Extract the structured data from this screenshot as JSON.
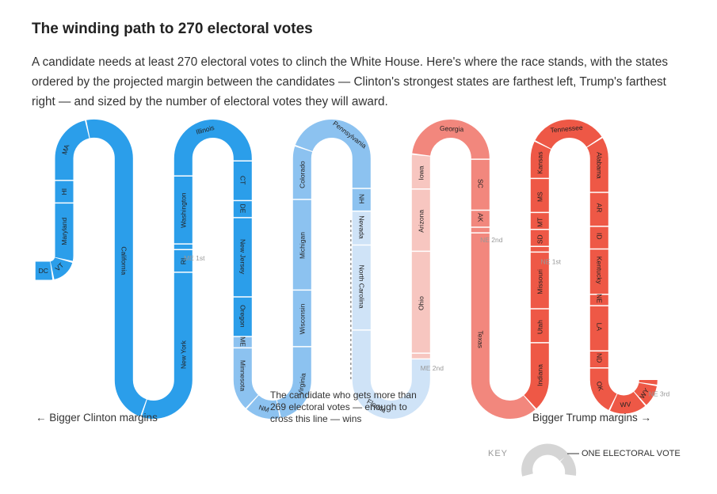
{
  "header": {
    "title": "The winding path to 270 electoral votes",
    "description": "A candidate needs at least 270 electoral votes to clinch the White House. Here's where the race stands, with the states ordered by the projected margin between the candidates — Clinton's strongest states are farthest left, Trump's farthest right — and sized by the number of electoral votes they will award."
  },
  "colors": {
    "clinton_strong": "#2b9eea",
    "clinton_lean": "#8cc2f0",
    "clinton_tossup": "#cfe3f7",
    "trump_tossup": "#f7c6c0",
    "trump_lean": "#f2877d",
    "trump_strong": "#ee5846",
    "key_gray": "#d5d5d5"
  },
  "states": [
    {
      "name": "DC",
      "votes": 3,
      "color": "clinton_strong"
    },
    {
      "name": "VT",
      "votes": 3,
      "color": "clinton_strong"
    },
    {
      "name": "Maryland",
      "votes": 10,
      "color": "clinton_strong"
    },
    {
      "name": "HI",
      "votes": 4,
      "color": "clinton_strong"
    },
    {
      "name": "MA",
      "votes": 11,
      "color": "clinton_strong"
    },
    {
      "name": "California",
      "votes": 55,
      "color": "clinton_strong"
    },
    {
      "name": "New York",
      "votes": 29,
      "color": "clinton_strong"
    },
    {
      "name": "RI",
      "votes": 4,
      "color": "clinton_strong"
    },
    {
      "name": "ME 1st",
      "votes": 1,
      "color": "clinton_strong"
    },
    {
      "name": "Washington",
      "votes": 12,
      "color": "clinton_strong"
    },
    {
      "name": "Illinois",
      "votes": 20,
      "color": "clinton_strong"
    },
    {
      "name": "CT",
      "votes": 7,
      "color": "clinton_strong"
    },
    {
      "name": "DE",
      "votes": 3,
      "color": "clinton_strong"
    },
    {
      "name": "New Jersey",
      "votes": 14,
      "color": "clinton_strong"
    },
    {
      "name": "Oregon",
      "votes": 7,
      "color": "clinton_strong"
    },
    {
      "name": "ME",
      "votes": 2,
      "color": "clinton_lean"
    },
    {
      "name": "Minnesota",
      "votes": 10,
      "color": "clinton_lean"
    },
    {
      "name": "NM",
      "votes": 5,
      "color": "clinton_lean"
    },
    {
      "name": "Virginia",
      "votes": 13,
      "color": "clinton_lean"
    },
    {
      "name": "Wisconsin",
      "votes": 10,
      "color": "clinton_lean"
    },
    {
      "name": "Michigan",
      "votes": 16,
      "color": "clinton_lean"
    },
    {
      "name": "Colorado",
      "votes": 9,
      "color": "clinton_lean"
    },
    {
      "name": "Pennsylvania",
      "votes": 20,
      "color": "clinton_lean"
    },
    {
      "name": "NH",
      "votes": 4,
      "color": "clinton_lean"
    },
    {
      "name": "Nevada",
      "votes": 6,
      "color": "clinton_tossup"
    },
    {
      "name": "North Carolina",
      "votes": 15,
      "color": "clinton_tossup"
    },
    {
      "name": "Florida",
      "votes": 29,
      "color": "clinton_tossup"
    },
    {
      "name": "ME 2nd",
      "votes": 1,
      "color": "trump_tossup"
    },
    {
      "name": "Ohio",
      "votes": 18,
      "color": "trump_tossup"
    },
    {
      "name": "Arizona",
      "votes": 11,
      "color": "trump_tossup"
    },
    {
      "name": "Iowa",
      "votes": 6,
      "color": "trump_tossup"
    },
    {
      "name": "Georgia",
      "votes": 16,
      "color": "trump_lean"
    },
    {
      "name": "SC",
      "votes": 9,
      "color": "trump_lean"
    },
    {
      "name": "AK",
      "votes": 3,
      "color": "trump_lean"
    },
    {
      "name": "NE 2nd",
      "votes": 1,
      "color": "trump_lean"
    },
    {
      "name": "Texas",
      "votes": 38,
      "color": "trump_lean"
    },
    {
      "name": "Indiana",
      "votes": 11,
      "color": "trump_strong"
    },
    {
      "name": "Utah",
      "votes": 6,
      "color": "trump_strong"
    },
    {
      "name": "Missouri",
      "votes": 10,
      "color": "trump_strong"
    },
    {
      "name": "NE 1st",
      "votes": 1,
      "color": "trump_strong"
    },
    {
      "name": "SD",
      "votes": 3,
      "color": "trump_strong"
    },
    {
      "name": "MT",
      "votes": 3,
      "color": "trump_strong"
    },
    {
      "name": "MS",
      "votes": 6,
      "color": "trump_strong"
    },
    {
      "name": "Kansas",
      "votes": 6,
      "color": "trump_strong"
    },
    {
      "name": "Tennessee",
      "votes": 11,
      "color": "trump_strong"
    },
    {
      "name": "Alabama",
      "votes": 9,
      "color": "trump_strong"
    },
    {
      "name": "AR",
      "votes": 6,
      "color": "trump_strong"
    },
    {
      "name": "ID",
      "votes": 4,
      "color": "trump_strong"
    },
    {
      "name": "Kentucky",
      "votes": 8,
      "color": "trump_strong"
    },
    {
      "name": "NE",
      "votes": 2,
      "color": "trump_strong"
    },
    {
      "name": "LA",
      "votes": 8,
      "color": "trump_strong"
    },
    {
      "name": "ND",
      "votes": 3,
      "color": "trump_strong"
    },
    {
      "name": "OK",
      "votes": 7,
      "color": "trump_strong"
    },
    {
      "name": "WV",
      "votes": 5,
      "color": "trump_strong"
    },
    {
      "name": "WY",
      "votes": 3,
      "color": "trump_strong"
    },
    {
      "name": "NE 3rd",
      "votes": 1,
      "color": "trump_strong"
    }
  ],
  "annotations": {
    "left_axis": "← Bigger Clinton margins",
    "right_axis": "Bigger Trump margins →",
    "threshold_note": "The candidate who gets more than 269 electoral votes — enough to cross this line — wins",
    "key_label": "KEY",
    "key_description": "ONE ELECTORAL VOTE"
  }
}
